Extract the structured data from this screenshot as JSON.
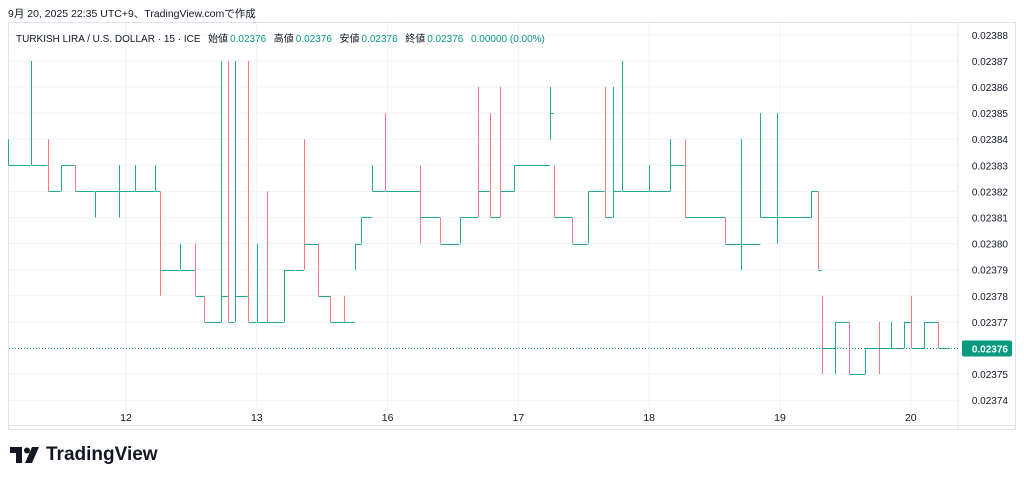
{
  "caption": "9月 20, 2025 22:35 UTC+9、TradingView.comで作成",
  "legend": {
    "symbol": "TURKISH LIRA / U.S. DOLLAR · 15 · ICE",
    "open_label": "始値",
    "open": "0.02376",
    "high_label": "高値",
    "high": "0.02376",
    "low_label": "安値",
    "low": "0.02376",
    "close_label": "終値",
    "close": "0.02376",
    "change": "0.00000 (0.00%)"
  },
  "logo": "TradingView",
  "colors": {
    "up": "#22ab94",
    "down": "#f7787f",
    "grid": "#f0f3fa",
    "last": "#089981"
  },
  "chart_data": {
    "type": "ohlc-step",
    "title": "TURKISH LIRA / U.S. DOLLAR · 15 · ICE",
    "x_tick_labels": [
      "12",
      "13",
      "16",
      "17",
      "18",
      "19",
      "20"
    ],
    "y_ticks": [
      "0.02388",
      "0.02387",
      "0.02386",
      "0.02385",
      "0.02384",
      "0.02383",
      "0.02382",
      "0.02381",
      "0.02380",
      "0.02379",
      "0.02378",
      "0.02377",
      "0.02375",
      "0.02374"
    ],
    "ylim": [
      0.023735,
      0.023885
    ],
    "xlim": [
      -0.9,
      6.3
    ],
    "last_price": "0.02376",
    "last_price_value": 0.02376,
    "bars": [
      [
        -0.9,
        0.02383,
        0.02384,
        0.02383,
        0.02383
      ],
      [
        -0.73,
        0.02383,
        0.02387,
        0.02383,
        0.02383
      ],
      [
        -0.6,
        0.02383,
        0.02384,
        0.02382,
        0.02382
      ],
      [
        -0.5,
        0.02382,
        0.02383,
        0.02382,
        0.02383
      ],
      [
        -0.39,
        0.02383,
        0.02383,
        0.02382,
        0.02382
      ],
      [
        -0.24,
        0.02382,
        0.02382,
        0.02381,
        0.02382
      ],
      [
        -0.05,
        0.02382,
        0.02383,
        0.02381,
        0.02382
      ],
      [
        0.07,
        0.02382,
        0.02383,
        0.02382,
        0.02382
      ],
      [
        0.22,
        0.02382,
        0.02383,
        0.02382,
        0.02382
      ],
      [
        0.26,
        0.02382,
        0.02382,
        0.02378,
        0.02379
      ],
      [
        0.41,
        0.02379,
        0.0238,
        0.02379,
        0.02379
      ],
      [
        0.53,
        0.02379,
        0.0238,
        0.02378,
        0.02378
      ],
      [
        0.6,
        0.02378,
        0.02378,
        0.02377,
        0.02377
      ],
      [
        0.73,
        0.02377,
        0.02387,
        0.02377,
        0.02378
      ],
      [
        0.78,
        0.02378,
        0.02387,
        0.02377,
        0.02377
      ],
      [
        0.83,
        0.02377,
        0.02387,
        0.02377,
        0.02378
      ],
      [
        0.93,
        0.02378,
        0.02387,
        0.02377,
        0.02377
      ],
      [
        1.0,
        0.02377,
        0.0238,
        0.02377,
        0.02377
      ],
      [
        1.08,
        0.02378,
        0.02382,
        0.02377,
        0.02377
      ],
      [
        1.21,
        0.02377,
        0.02379,
        0.02377,
        0.02379
      ],
      [
        1.29,
        0.02379,
        0.02379,
        0.02379,
        0.02379
      ],
      [
        1.36,
        0.02381,
        0.02384,
        0.02379,
        0.0238
      ],
      [
        1.47,
        0.0238,
        0.0238,
        0.02378,
        0.02378
      ],
      [
        1.56,
        0.02378,
        0.02378,
        0.02377,
        0.02377
      ],
      [
        1.67,
        0.02378,
        0.02378,
        0.02377,
        0.02377
      ],
      [
        1.75,
        0.02379,
        0.0238,
        0.02379,
        0.0238
      ],
      [
        1.8,
        0.0238,
        0.02381,
        0.0238,
        0.02381
      ],
      [
        1.88,
        0.02381,
        0.02383,
        0.02382,
        0.02382
      ],
      [
        1.98,
        0.02383,
        0.02385,
        0.02382,
        0.02382
      ],
      [
        2.25,
        0.02382,
        0.02383,
        0.0238,
        0.02381
      ],
      [
        2.4,
        0.02381,
        0.02381,
        0.0238,
        0.0238
      ],
      [
        2.55,
        0.0238,
        0.02381,
        0.0238,
        0.02381
      ],
      [
        2.69,
        0.02383,
        0.02386,
        0.02381,
        0.02382
      ],
      [
        2.78,
        0.02382,
        0.02385,
        0.02381,
        0.02381
      ],
      [
        2.86,
        0.02383,
        0.02386,
        0.02381,
        0.02382
      ],
      [
        2.97,
        0.02382,
        0.02383,
        0.02382,
        0.02383
      ],
      [
        3.16,
        0.02383,
        0.02383,
        0.02383,
        0.02383
      ],
      [
        3.24,
        0.02384,
        0.02386,
        0.02384,
        0.02385
      ],
      [
        3.27,
        0.02383,
        0.02383,
        0.02381,
        0.02381
      ],
      [
        3.41,
        0.02381,
        0.02381,
        0.0238,
        0.0238
      ],
      [
        3.53,
        0.0238,
        0.02382,
        0.0238,
        0.02382
      ],
      [
        3.66,
        0.02382,
        0.02386,
        0.02381,
        0.02381
      ],
      [
        3.72,
        0.02381,
        0.02386,
        0.02381,
        0.02382
      ],
      [
        3.79,
        0.02382,
        0.02387,
        0.02382,
        0.02382
      ],
      [
        4.0,
        0.02382,
        0.02383,
        0.02382,
        0.02382
      ],
      [
        4.16,
        0.02382,
        0.02384,
        0.02382,
        0.02383
      ],
      [
        4.27,
        0.02383,
        0.02384,
        0.02381,
        0.02381
      ],
      [
        4.58,
        0.02381,
        0.02381,
        0.0238,
        0.0238
      ],
      [
        4.7,
        0.0238,
        0.02384,
        0.02379,
        0.0238
      ],
      [
        4.85,
        0.0238,
        0.02385,
        0.02381,
        0.02381
      ],
      [
        4.98,
        0.02381,
        0.02385,
        0.0238,
        0.02381
      ],
      [
        5.24,
        0.02381,
        0.02382,
        0.02381,
        0.02382
      ],
      [
        5.29,
        0.02382,
        0.02382,
        0.02379,
        0.02379
      ],
      [
        5.32,
        0.02379,
        0.02378,
        0.02375,
        0.02376
      ],
      [
        5.42,
        0.02376,
        0.02377,
        0.02375,
        0.02377
      ],
      [
        5.53,
        0.02377,
        0.02377,
        0.02375,
        0.02375
      ],
      [
        5.65,
        0.02375,
        0.02376,
        0.02375,
        0.02376
      ],
      [
        5.76,
        0.02377,
        0.02377,
        0.02375,
        0.02376
      ],
      [
        5.85,
        0.02376,
        0.02377,
        0.02376,
        0.02376
      ],
      [
        5.95,
        0.02376,
        0.02377,
        0.02376,
        0.02377
      ],
      [
        6.0,
        0.02377,
        0.02378,
        0.02376,
        0.02376
      ],
      [
        6.1,
        0.02376,
        0.02377,
        0.02376,
        0.02377
      ],
      [
        6.21,
        0.02377,
        0.02377,
        0.02376,
        0.02376
      ]
    ]
  }
}
